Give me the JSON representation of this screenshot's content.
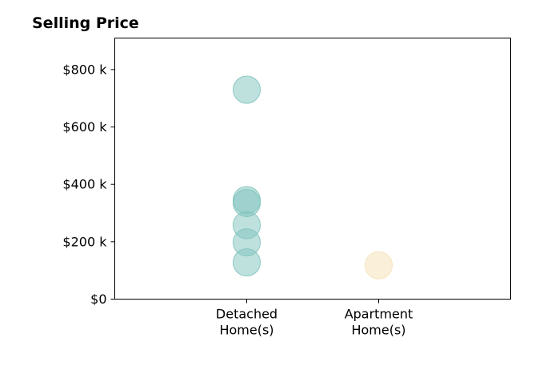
{
  "chart_data": {
    "type": "scatter",
    "title": "Selling Price",
    "xlabel": "",
    "ylabel": "",
    "categories": [
      [
        "Detached",
        "Home(s)"
      ],
      [
        "Apartment",
        "Home(s)"
      ]
    ],
    "x_range": [
      -1,
      2
    ],
    "ylim": [
      0,
      910000
    ],
    "y_ticks": [
      {
        "value": 0,
        "label": "$0"
      },
      {
        "value": 200000,
        "label": "$200 k"
      },
      {
        "value": 400000,
        "label": "$400 k"
      },
      {
        "value": 600000,
        "label": "$600 k"
      },
      {
        "value": 800000,
        "label": "$800 k"
      }
    ],
    "grid": false,
    "series": [
      {
        "category_index": 0,
        "color": "#7fc4bd",
        "values": [
          730000,
          345000,
          335000,
          258000,
          198000,
          128000
        ]
      },
      {
        "category_index": 1,
        "color": "#f5e1b5",
        "values": [
          118000
        ]
      }
    ]
  }
}
